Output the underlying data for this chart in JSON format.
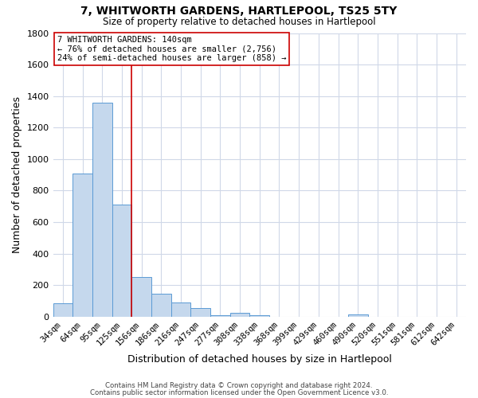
{
  "title": "7, WHITWORTH GARDENS, HARTLEPOOL, TS25 5TY",
  "subtitle": "Size of property relative to detached houses in Hartlepool",
  "xlabel": "Distribution of detached houses by size in Hartlepool",
  "ylabel": "Number of detached properties",
  "bar_color": "#c5d8ed",
  "bar_edge_color": "#5b9bd5",
  "background_color": "#ffffff",
  "grid_color": "#d0d8e8",
  "categories": [
    "34sqm",
    "64sqm",
    "95sqm",
    "125sqm",
    "156sqm",
    "186sqm",
    "216sqm",
    "247sqm",
    "277sqm",
    "308sqm",
    "338sqm",
    "368sqm",
    "399sqm",
    "429sqm",
    "460sqm",
    "490sqm",
    "520sqm",
    "551sqm",
    "581sqm",
    "612sqm",
    "642sqm"
  ],
  "values": [
    85,
    910,
    1360,
    710,
    250,
    145,
    90,
    55,
    10,
    25,
    10,
    0,
    0,
    0,
    0,
    15,
    0,
    0,
    0,
    0,
    0
  ],
  "ylim": [
    0,
    1800
  ],
  "yticks": [
    0,
    200,
    400,
    600,
    800,
    1000,
    1200,
    1400,
    1600,
    1800
  ],
  "vline_x": 3.5,
  "vline_color": "#cc0000",
  "annotation_title": "7 WHITWORTH GARDENS: 140sqm",
  "annotation_line1": "← 76% of detached houses are smaller (2,756)",
  "annotation_line2": "24% of semi-detached houses are larger (858) →",
  "footer_line1": "Contains HM Land Registry data © Crown copyright and database right 2024.",
  "footer_line2": "Contains public sector information licensed under the Open Government Licence v3.0."
}
